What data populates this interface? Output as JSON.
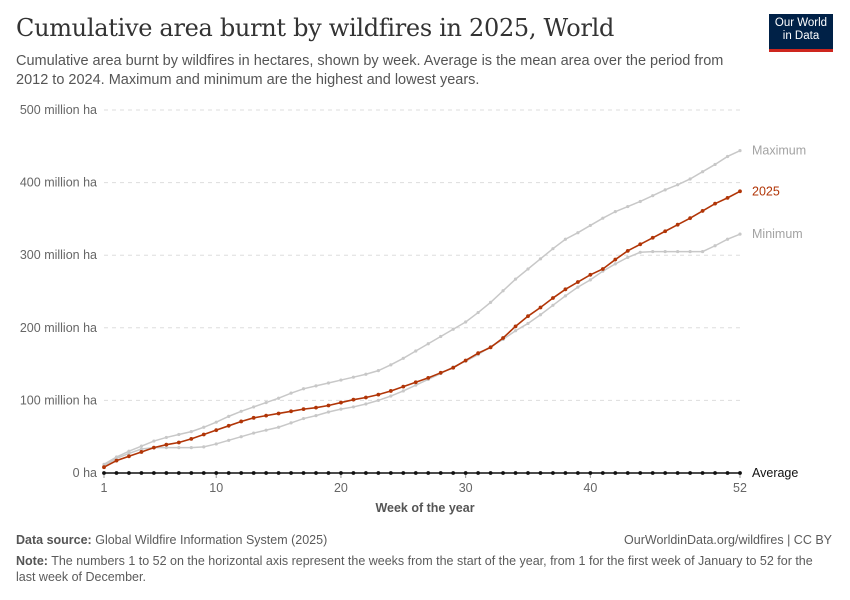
{
  "title": "Cumulative area burnt by wildfires in 2025, World",
  "subtitle": "Cumulative area burnt by wildfires in hectares, shown by week. Average is the mean area over the period from 2012 to 2024. Maximum and minimum are the highest and lowest years.",
  "logo": {
    "line1": "Our World",
    "line2": "in Data",
    "bg": "#002147",
    "accent": "#ce261e"
  },
  "chart_data": {
    "type": "line",
    "xlabel": "Week of the year",
    "ylabel": "",
    "xlim": [
      1,
      52
    ],
    "ylim": [
      0,
      500
    ],
    "x_ticks": [
      "1",
      "10",
      "20",
      "30",
      "40",
      "52"
    ],
    "x_tick_values": [
      1,
      10,
      20,
      30,
      40,
      52
    ],
    "y_ticks": [
      "0 ha",
      "100 million ha",
      "200 million ha",
      "300 million ha",
      "400 million ha",
      "500 million ha"
    ],
    "y_tick_values": [
      0,
      100,
      200,
      300,
      400,
      500
    ],
    "grid": "horizontal dashed",
    "legend": "end-of-line labels",
    "unit": "million ha",
    "series": [
      {
        "name": "Maximum",
        "color": "#c8c8c8",
        "values": [
          12,
          22,
          30,
          37,
          44,
          49,
          53,
          57,
          63,
          70,
          78,
          85,
          91,
          97,
          103,
          110,
          116,
          120,
          124,
          128,
          132,
          136,
          141,
          149,
          158,
          168,
          178,
          188,
          198,
          208,
          221,
          235,
          251,
          267,
          281,
          295,
          309,
          322,
          331,
          341,
          351,
          360,
          367,
          374,
          382,
          390,
          397,
          405,
          415,
          425,
          436,
          444
        ]
      },
      {
        "name": "Minimum",
        "color": "#c8c8c8",
        "values": [
          10,
          20,
          27,
          33,
          35,
          35,
          35,
          35,
          36,
          40,
          45,
          50,
          55,
          59,
          63,
          69,
          75,
          79,
          84,
          88,
          91,
          95,
          100,
          106,
          113,
          121,
          129,
          137,
          146,
          154,
          163,
          174,
          184,
          196,
          206,
          218,
          231,
          244,
          256,
          266,
          278,
          288,
          297,
          304,
          305,
          305,
          305,
          305,
          305,
          313,
          322,
          329
        ]
      },
      {
        "name": "2025",
        "color": "#b13507",
        "values": [
          8,
          17,
          23,
          29,
          35,
          39,
          42,
          47,
          53,
          59,
          65,
          71,
          76,
          79,
          82,
          85,
          88,
          90,
          93,
          97,
          101,
          104,
          108,
          113,
          119,
          125,
          131,
          138,
          145,
          155,
          165,
          173,
          186,
          202,
          216,
          228,
          241,
          253,
          263,
          273,
          281,
          294,
          306,
          315,
          324,
          333,
          342,
          351,
          361,
          371,
          379,
          388
        ]
      },
      {
        "name": "Average",
        "color": "#111111",
        "values": [
          0,
          0,
          0,
          0,
          0,
          0,
          0,
          0,
          0,
          0,
          0,
          0,
          0,
          0,
          0,
          0,
          0,
          0,
          0,
          0,
          0,
          0,
          0,
          0,
          0,
          0,
          0,
          0,
          0,
          0,
          0,
          0,
          0,
          0,
          0,
          0,
          0,
          0,
          0,
          0,
          0,
          0,
          0,
          0,
          0,
          0,
          0,
          0,
          0,
          0,
          0,
          0
        ]
      }
    ]
  },
  "footer": {
    "source_label": "Data source:",
    "source": "Global Wildfire Information System (2025)",
    "link": "OurWorldinData.org/wildfires | CC BY",
    "note_label": "Note:",
    "note": "The numbers 1 to 52 on the horizontal axis represent the weeks from the start of the year, from 1 for the first week of January to 52 for the last week of December."
  }
}
